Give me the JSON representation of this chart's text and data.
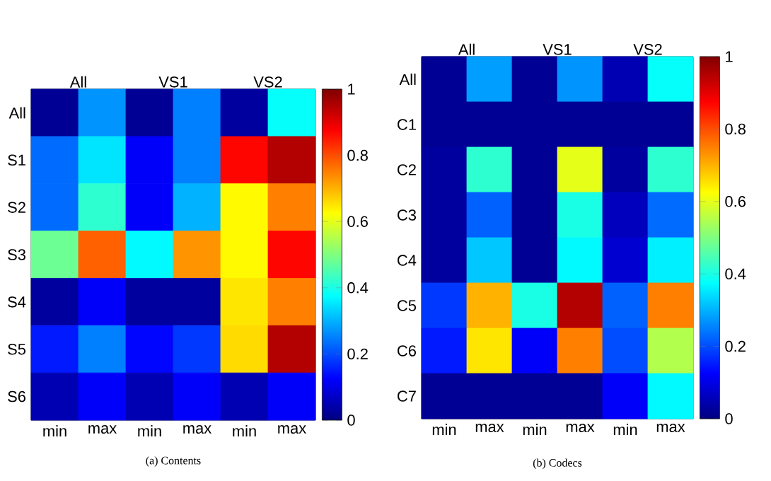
{
  "chart_data": [
    {
      "type": "heatmap",
      "title": "(a) Contents",
      "annotations": [
        "All",
        "VS1",
        "VS2"
      ],
      "categories": [
        "min",
        "max",
        "min",
        "max",
        "min",
        "max"
      ],
      "y_categories": [
        "All",
        "S1",
        "S2",
        "S3",
        "S4",
        "S5",
        "S6"
      ],
      "cells": [
        [
          0.02,
          0.27,
          0.02,
          0.25,
          0.03,
          0.38
        ],
        [
          0.23,
          0.35,
          0.12,
          0.25,
          0.87,
          0.95
        ],
        [
          0.23,
          0.42,
          0.12,
          0.3,
          0.63,
          0.75
        ],
        [
          0.48,
          0.78,
          0.37,
          0.73,
          0.63,
          0.87
        ],
        [
          0.03,
          0.12,
          0.03,
          0.03,
          0.65,
          0.75
        ],
        [
          0.15,
          0.25,
          0.13,
          0.18,
          0.66,
          0.95
        ],
        [
          0.05,
          0.12,
          0.05,
          0.12,
          0.05,
          0.12
        ]
      ],
      "clim": [
        0,
        1
      ],
      "cticks": [
        0,
        0.2,
        0.4,
        0.6,
        0.8,
        1
      ]
    },
    {
      "type": "heatmap",
      "title": "(b) Codecs",
      "annotations": [
        "All",
        "VS1",
        "VS2"
      ],
      "categories": [
        "min",
        "max",
        "min",
        "max",
        "min",
        "max"
      ],
      "y_categories": [
        "All",
        "C1",
        "C2",
        "C3",
        "C4",
        "C5",
        "C6",
        "C7"
      ],
      "cells": [
        [
          0.02,
          0.28,
          0.02,
          0.27,
          0.05,
          0.38
        ],
        [
          0.02,
          0.02,
          0.02,
          0.02,
          0.02,
          0.02
        ],
        [
          0.03,
          0.42,
          0.02,
          0.6,
          0.03,
          0.42
        ],
        [
          0.03,
          0.22,
          0.02,
          0.4,
          0.06,
          0.23
        ],
        [
          0.03,
          0.32,
          0.02,
          0.37,
          0.08,
          0.36
        ],
        [
          0.18,
          0.7,
          0.4,
          0.95,
          0.22,
          0.75
        ],
        [
          0.15,
          0.65,
          0.12,
          0.75,
          0.2,
          0.55
        ],
        [
          0.02,
          0.02,
          0.02,
          0.02,
          0.12,
          0.37
        ]
      ],
      "clim": [
        0,
        1
      ],
      "cticks": [
        0,
        0.2,
        0.4,
        0.6,
        0.8,
        1
      ]
    }
  ]
}
